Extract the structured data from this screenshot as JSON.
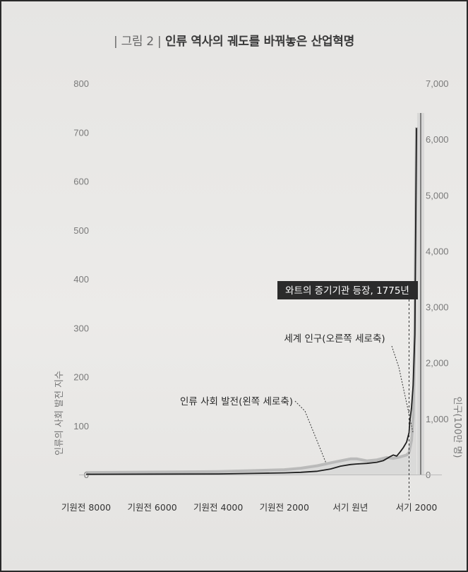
{
  "title": {
    "figure_label": "| 그림 2 |",
    "text": "인류 역사의 궤도를 바꿔놓은 산업혁명"
  },
  "chart_data": {
    "type": "line",
    "title": "인류 역사의 궤도를 바꿔놓은 산업혁명",
    "x_tick_labels": [
      "기원전 8000",
      "기원전 6000",
      "기원전 4000",
      "기원전 2000",
      "서기 원년",
      "서기 2000"
    ],
    "x_tick_values": [
      -8000,
      -6000,
      -4000,
      -2000,
      0,
      2000
    ],
    "xlim": [
      -8000,
      2000
    ],
    "left_axis": {
      "label": "인류의 사회 발전 지수",
      "ylim": [
        0,
        800
      ],
      "ticks": [
        0,
        100,
        200,
        300,
        400,
        500,
        600,
        700,
        800
      ],
      "tick_labels": [
        "0",
        "100",
        "200",
        "300",
        "400",
        "500",
        "600",
        "700",
        "800"
      ]
    },
    "right_axis": {
      "label": "인구(100만 명)",
      "ylim": [
        0,
        7000
      ],
      "ticks": [
        0,
        1000,
        2000,
        3000,
        4000,
        5000,
        6000,
        7000
      ],
      "tick_labels": [
        "0",
        "1,000",
        "2,000",
        "3,000",
        "4,000",
        "5,000",
        "6,000",
        "7,000"
      ]
    },
    "series": [
      {
        "name": "인류 사회 발전(왼쪽 세로축)",
        "axis": "left",
        "color": "#b3b3b3",
        "x": [
          -8000,
          -6000,
          -4000,
          -3000,
          -2000,
          -1500,
          -1000,
          -600,
          -300,
          0,
          200,
          500,
          800,
          1100,
          1300,
          1500,
          1700,
          1775,
          1850,
          1900,
          1950,
          2000
        ],
        "y": [
          4,
          5,
          6,
          8,
          10,
          13,
          18,
          24,
          28,
          32,
          32,
          28,
          30,
          35,
          33,
          36,
          40,
          45,
          70,
          120,
          300,
          710
        ]
      },
      {
        "name": "세계 인구(오른쪽 세로축)",
        "axis": "right",
        "color": "#1e1e1e",
        "x": [
          -8000,
          -6000,
          -4000,
          -3000,
          -2000,
          -1500,
          -1000,
          -600,
          -300,
          0,
          200,
          500,
          800,
          1000,
          1200,
          1300,
          1400,
          1500,
          1600,
          1700,
          1775,
          1800,
          1850,
          1900,
          1950,
          2000
        ],
        "y": [
          5,
          8,
          12,
          20,
          30,
          40,
          60,
          100,
          150,
          180,
          190,
          200,
          220,
          250,
          320,
          350,
          330,
          400,
          480,
          580,
          750,
          950,
          1200,
          1600,
          2500,
          6200
        ]
      }
    ],
    "annotations": [
      {
        "text": "와트의 증기기관 등장, 1775년",
        "x": 1775,
        "style": "dark-box"
      },
      {
        "text": "세계 인구(오른쪽 세로축)",
        "series": 1
      },
      {
        "text": "인류 사회 발전(왼쪽 세로축)",
        "series": 0
      }
    ],
    "grid": false,
    "legend": "none"
  }
}
